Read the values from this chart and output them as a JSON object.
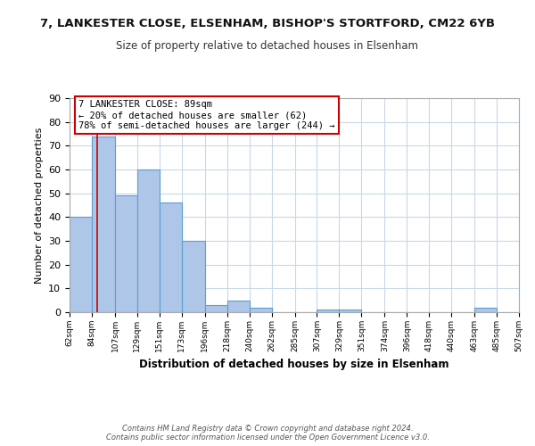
{
  "title_line1": "7, LANKESTER CLOSE, ELSENHAM, BISHOP'S STORTFORD, CM22 6YB",
  "title_line2": "Size of property relative to detached houses in Elsenham",
  "xlabel": "Distribution of detached houses by size in Elsenham",
  "ylabel": "Number of detached properties",
  "bin_edges": [
    62,
    84,
    107,
    129,
    151,
    173,
    196,
    218,
    240,
    262,
    285,
    307,
    329,
    351,
    374,
    396,
    418,
    440,
    463,
    485,
    507
  ],
  "bin_counts": [
    40,
    74,
    49,
    60,
    46,
    30,
    3,
    5,
    2,
    0,
    0,
    1,
    1,
    0,
    0,
    0,
    0,
    0,
    2,
    0
  ],
  "bar_color": "#aec6e8",
  "bar_edge_color": "#5a9fd4",
  "property_size": 89,
  "vline_color": "#cc0000",
  "annotation_box_text": "7 LANKESTER CLOSE: 89sqm\n← 20% of detached houses are smaller (62)\n78% of semi-detached houses are larger (244) →",
  "annotation_box_color": "#cc0000",
  "ylim": [
    0,
    90
  ],
  "yticks": [
    0,
    10,
    20,
    30,
    40,
    50,
    60,
    70,
    80,
    90
  ],
  "tick_labels": [
    "62sqm",
    "84sqm",
    "107sqm",
    "129sqm",
    "151sqm",
    "173sqm",
    "196sqm",
    "218sqm",
    "240sqm",
    "262sqm",
    "285sqm",
    "307sqm",
    "329sqm",
    "351sqm",
    "374sqm",
    "396sqm",
    "418sqm",
    "440sqm",
    "463sqm",
    "485sqm",
    "507sqm"
  ],
  "footer_text": "Contains HM Land Registry data © Crown copyright and database right 2024.\nContains public sector information licensed under the Open Government Licence v3.0.",
  "background_color": "#ffffff",
  "grid_color": "#c8d8e8"
}
